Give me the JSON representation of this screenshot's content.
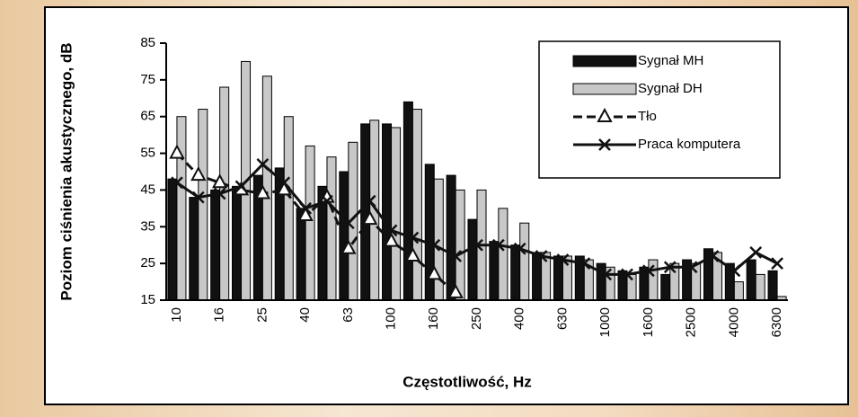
{
  "chart_data": {
    "type": "bar",
    "y_label": "Poziom ciśnienia akustycznego, dB",
    "x_label": "Częstotliwość, Hz",
    "categories": [
      "10",
      null,
      "16",
      null,
      "25",
      null,
      "40",
      null,
      "63",
      null,
      "100",
      null,
      "160",
      null,
      "250",
      null,
      "400",
      null,
      "630",
      null,
      "1000",
      null,
      "1600",
      null,
      "2500",
      null,
      "4000",
      null,
      "6300"
    ],
    "series": [
      {
        "name": "Sygnał MH",
        "kind": "bar",
        "color": "#111111",
        "values": [
          48,
          43,
          45,
          46,
          49,
          51,
          40,
          46,
          50,
          63,
          63,
          69,
          52,
          49,
          37,
          31,
          30,
          28,
          27,
          27,
          25,
          23,
          24,
          22,
          26,
          29,
          25,
          26,
          23
        ]
      },
      {
        "name": "Sygnał DH",
        "kind": "bar",
        "color": "#c8c8c8",
        "values": [
          65,
          67,
          73,
          80,
          76,
          65,
          57,
          54,
          58,
          64,
          62,
          67,
          48,
          45,
          45,
          40,
          36,
          28,
          27,
          26,
          24,
          22,
          26,
          25,
          25,
          28,
          20,
          22,
          16
        ]
      },
      {
        "name": "Tło",
        "kind": "line",
        "marker": "triangle",
        "dashed": true,
        "color": "#111111",
        "values": [
          55,
          49,
          47,
          45,
          44,
          45,
          38,
          43,
          29,
          37,
          31,
          27,
          22,
          17,
          null,
          null,
          null,
          null,
          null,
          null,
          null,
          null,
          null,
          null,
          null,
          null,
          null,
          null,
          null
        ]
      },
      {
        "name": "Praca komputera",
        "kind": "line",
        "marker": "x",
        "dashed": false,
        "color": "#111111",
        "values": [
          47,
          43,
          44,
          46,
          52,
          47,
          40,
          42,
          36,
          42,
          34,
          32,
          30,
          27,
          30,
          30,
          29,
          27,
          26,
          25,
          22,
          22,
          23,
          24,
          24,
          27,
          23,
          28,
          25
        ]
      }
    ],
    "ylim": [
      15,
      85
    ],
    "yticks": [
      15,
      25,
      35,
      45,
      55,
      65,
      75,
      85
    ],
    "legend": "upper right"
  }
}
